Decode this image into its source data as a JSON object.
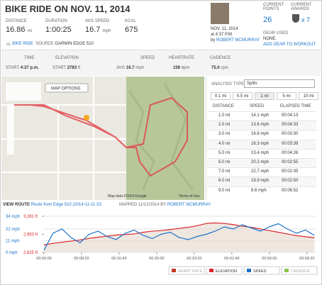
{
  "header": {
    "title": "BIKE RIDE ON NOV. 11, 2014"
  },
  "stats": [
    {
      "label": "DISTANCE",
      "value": "16.86",
      "unit": "mi"
    },
    {
      "label": "DURATION",
      "value": "1:00:25",
      "unit": ""
    },
    {
      "label": "AVG SPEED",
      "value": "16.7",
      "unit": "mph"
    },
    {
      "label": "KCAL",
      "value": "675",
      "unit": ""
    }
  ],
  "profile": {
    "date": "NOV. 11, 2014",
    "time": "at 4:37 P.M.",
    "by": "by",
    "name": "ROBERT MCMURRAY"
  },
  "points": {
    "label": "CURRENT POINTS",
    "value": "26"
  },
  "awards": {
    "label": "CURRENT AWARDS",
    "value": "x 7"
  },
  "gear": {
    "label": "GEAR USED",
    "value": "NONE.",
    "link": "ADD GEAR TO WORKOUT."
  },
  "activity": {
    "type": "BIKE RIDE",
    "source_label": "SOURCE",
    "source": "GARMIN EDGE 510"
  },
  "details": {
    "time": {
      "label": "TIME",
      "prefix": "START",
      "value": "4:37 p.m."
    },
    "elevation": {
      "label": "ELEVATION",
      "prefix": "START",
      "value": "2783",
      "unit": "ft"
    },
    "speed": {
      "label": "SPEED",
      "prefix": "AVG",
      "value": "16.7",
      "unit": "mph"
    },
    "heartrate": {
      "label": "HEARTRATE",
      "value": "159",
      "unit": "bpm"
    },
    "cadence": {
      "label": "CADENCE",
      "value": "75.0",
      "unit": "rpm"
    }
  },
  "map": {
    "options": "MAP OPTIONS",
    "credit": "Map data ©2014 Google",
    "terms": "Terms of Use",
    "view_route": "VIEW ROUTE",
    "route": "Route from Edge 510 (2014-11-11 23:",
    "mapped": "MAPPED 11/12/2014 BY",
    "mapper": "ROBERT MCMURRAY"
  },
  "splits": {
    "analysis_label": "ANALYSIS TYPE",
    "analysis": "Splits",
    "tabs": [
      "0.1 mi",
      "0.5 mi",
      "1 mi",
      "5 mi",
      "10 mi"
    ],
    "columns": [
      "DISTANCE",
      "SPEED",
      "ELAPSED TIME"
    ],
    "rows": [
      [
        "1.0 mi",
        "14.1 mph",
        "00:04:13"
      ],
      [
        "2.0 mi",
        "13.6 mph",
        "00:04:33"
      ],
      [
        "3.0 mi",
        "16.8 mph",
        "00:03:30"
      ],
      [
        "4.0 mi",
        "16.3 mph",
        "00:03:39"
      ],
      [
        "5.0 mi",
        "13.4 mph",
        "00:04:26"
      ],
      [
        "6.0 mi",
        "20.2 mph",
        "00:02:55"
      ],
      [
        "7.0 mi",
        "22.7 mph",
        "00:02:35"
      ],
      [
        "8.0 mi",
        "19.9 mph",
        "00:02:50"
      ],
      [
        "9.0 mi",
        "8.6 mph",
        "00:06:52"
      ]
    ]
  },
  "chart_data": {
    "type": "line",
    "x": [
      0,
      120,
      240,
      360,
      480,
      600,
      720,
      840,
      960,
      1080,
      1200,
      1320,
      1440,
      1560,
      1680,
      1800,
      1920,
      2040,
      2160,
      2280,
      2400,
      2520,
      2640,
      2760,
      2880,
      3000,
      3120,
      3240,
      3360,
      3480,
      3600
    ],
    "xlim": [
      0,
      3625
    ],
    "xticks": [
      {
        "value": 0,
        "label": "00:00:00"
      },
      {
        "value": 500,
        "label": "00:08:20"
      },
      {
        "value": 1000,
        "label": "00:16:40"
      },
      {
        "value": 1500,
        "label": "00:25:00"
      },
      {
        "value": 2000,
        "label": "00:33:20"
      },
      {
        "value": 2500,
        "label": "00:41:40"
      },
      {
        "value": 3000,
        "label": "00:50:00"
      },
      {
        "value": 3500,
        "label": "00:58:20"
      }
    ],
    "ylim": [
      0,
      34
    ],
    "yticks": [
      {
        "value": 0,
        "label": "0 mph"
      },
      {
        "value": 11,
        "label": "11 mph"
      },
      {
        "value": 22,
        "label": "22 mph"
      },
      {
        "value": 34,
        "label": "34 mph"
      }
    ],
    "y2lim": [
      2625,
      3281
    ],
    "y2ticks": [
      {
        "value": 2625,
        "label": "2,625 ft"
      },
      {
        "value": 2953,
        "label": "2,953 ft"
      },
      {
        "value": 3281,
        "label": "3,281 ft"
      }
    ],
    "series": [
      {
        "name": "ELEVATION",
        "color": "#d9262b",
        "axis": "y2",
        "values": [
          2760,
          2790,
          2810,
          2830,
          2850,
          2880,
          2900,
          2920,
          2940,
          2950,
          2960,
          2990,
          3010,
          3020,
          3040,
          3060,
          3080,
          3110,
          3150,
          3160,
          3150,
          3130,
          3100,
          3080,
          3050,
          3020,
          2990,
          2960,
          2930,
          2910,
          2890
        ]
      },
      {
        "name": "SPEED",
        "color": "#1a73c9",
        "values": [
          2,
          18,
          22,
          14,
          9,
          17,
          20,
          15,
          12,
          18,
          21,
          16,
          13,
          17,
          19,
          14,
          12,
          15,
          17,
          20,
          24,
          22,
          26,
          23,
          20,
          24,
          27,
          22,
          18,
          21,
          16
        ]
      }
    ],
    "legend": [
      "HEART RATE",
      "ELEVATION",
      "SPEED",
      "CADENCE"
    ]
  }
}
